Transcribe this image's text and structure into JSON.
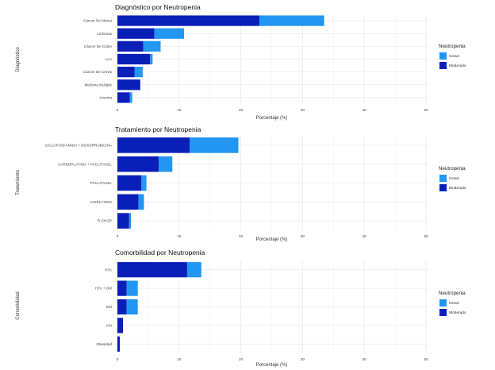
{
  "colors": {
    "grave": "#2196f3",
    "moderado": "#0a1fb8",
    "grid": "#ebebeb"
  },
  "chart_data": [
    {
      "type": "bar",
      "orientation": "horizontal",
      "stacked": true,
      "title": "Diagnóstico por Neutropenia",
      "xlabel": "Porcentaje (%)",
      "ylabel": "Diagnóstico",
      "xlim": [
        0,
        50
      ],
      "xticks": [
        "0",
        "10",
        "20",
        "30",
        "40",
        "50"
      ],
      "legend": {
        "title": "Neutropenia",
        "position": "right",
        "entries": [
          "Grave",
          "Moderado"
        ]
      },
      "categories": [
        "Cáncer De Mama",
        "Linfomas",
        "Cáncer De Colon",
        "LLA",
        "Cáncer De Cervix",
        "Mieloma Multiple",
        "Anemia"
      ],
      "series": [
        {
          "name": "Moderado",
          "values": [
            23.0,
            6.0,
            4.2,
            5.3,
            2.8,
            3.7,
            2.0
          ]
        },
        {
          "name": "Grave",
          "values": [
            10.5,
            4.8,
            2.8,
            0.4,
            1.3,
            0.0,
            0.4
          ]
        }
      ]
    },
    {
      "type": "bar",
      "orientation": "horizontal",
      "stacked": true,
      "title": "Tratamiento por Neutropenia",
      "xlabel": "Porcentaje (%)",
      "ylabel": "Tratamiento",
      "xlim": [
        0,
        50
      ],
      "xticks": [
        "0",
        "10",
        "20",
        "30",
        "40",
        "50"
      ],
      "legend": {
        "title": "Neutropenia",
        "position": "right",
        "entries": [
          "Grave",
          "Moderado"
        ]
      },
      "categories": [
        "CICLOFOSFAMIDA + DOXORRUBICINA",
        "CARBOPLATINO + PACLITAXEL",
        "PACLITAXEL",
        "CISPLATINO",
        "R-CHOP"
      ],
      "series": [
        {
          "name": "Moderado",
          "values": [
            11.7,
            6.7,
            3.9,
            3.4,
            1.9
          ]
        },
        {
          "name": "Grave",
          "values": [
            7.9,
            2.2,
            0.8,
            0.9,
            0.3
          ]
        }
      ]
    },
    {
      "type": "bar",
      "orientation": "horizontal",
      "stacked": true,
      "title": "Comorbilidad por Neutropenia",
      "xlabel": "Porcentaje (%)",
      "ylabel": "Comorbilidad",
      "xlim": [
        0,
        50
      ],
      "xticks": [
        "0",
        "10",
        "20",
        "30",
        "40",
        "50"
      ],
      "legend": {
        "title": "Neutropenia",
        "position": "right",
        "entries": [
          "Grave",
          "Moderado"
        ]
      },
      "categories": [
        "HTA",
        "HTA + DM",
        "DM",
        "VIH",
        "Obesidad"
      ],
      "series": [
        {
          "name": "Moderado",
          "values": [
            11.3,
            1.5,
            1.5,
            0.9,
            0.4
          ]
        },
        {
          "name": "Grave",
          "values": [
            2.3,
            1.8,
            1.8,
            0.0,
            0.0
          ]
        }
      ]
    }
  ]
}
